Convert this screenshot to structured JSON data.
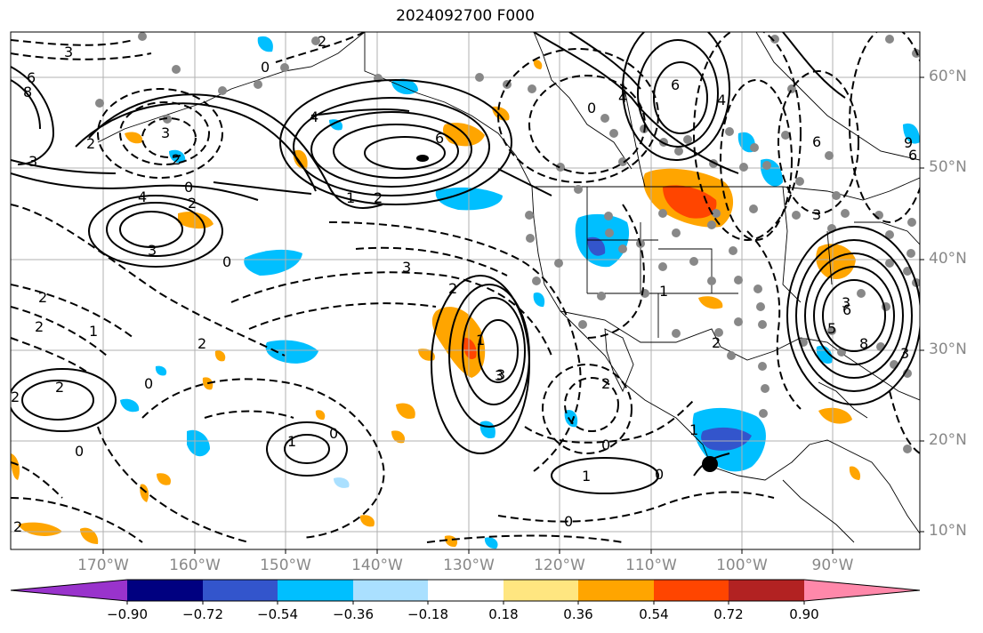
{
  "title": "2024092700 F000",
  "lat_labels": [
    "60°N",
    "50°N",
    "40°N",
    "30°N",
    "20°N",
    "10°N"
  ],
  "lon_labels": [
    "170°W",
    "160°W",
    "150°W",
    "140°W",
    "130°W",
    "120°W",
    "110°W",
    "100°W",
    "90°W"
  ],
  "colorbar": {
    "ticks": [
      "−0.90",
      "−0.72",
      "−0.54",
      "−0.36",
      "−0.18",
      "0.18",
      "0.36",
      "0.54",
      "0.72",
      "0.90"
    ],
    "colors": [
      "#9933cc",
      "#000080",
      "#3355cc",
      "#00bfff",
      "#aae0ff",
      "#ffffff",
      "#ffe680",
      "#ffa500",
      "#ff4500",
      "#b22222",
      "#ff88aa"
    ]
  },
  "contour_labels": [
    "3",
    "6",
    "8",
    "2",
    "3",
    "3",
    "2",
    "0",
    "2",
    "3",
    "4",
    "4",
    "6",
    "0",
    "1",
    "2",
    "2",
    "0",
    "4",
    "6",
    "4",
    "6",
    "6",
    "9",
    "3",
    "3",
    "2",
    "3",
    "1",
    "2",
    "2",
    "1",
    "2",
    "2",
    "2",
    "0",
    "0",
    "1",
    "0",
    "3",
    "2",
    "1",
    "2",
    "0",
    "0",
    "1",
    "0",
    "0",
    "2",
    "3",
    "5",
    "8",
    "3",
    "6",
    "1"
  ]
}
